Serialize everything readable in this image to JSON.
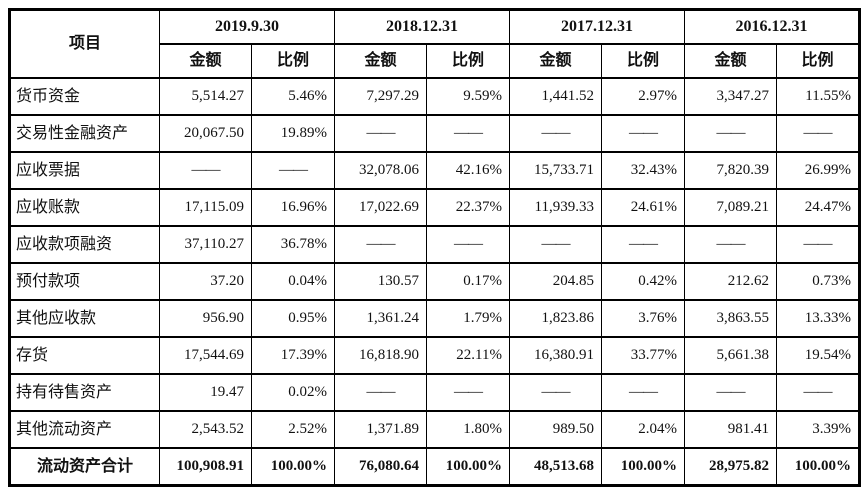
{
  "table": {
    "item_header": "项目",
    "periods": [
      "2019.9.30",
      "2018.12.31",
      "2017.12.31",
      "2016.12.31"
    ],
    "amount_label": "金额",
    "ratio_label": "比例",
    "dash": "——",
    "rows": [
      {
        "label": "货币资金",
        "cells": [
          "5,514.27",
          "5.46%",
          "7,297.29",
          "9.59%",
          "1,441.52",
          "2.97%",
          "3,347.27",
          "11.55%"
        ]
      },
      {
        "label": "交易性金融资产",
        "cells": [
          "20,067.50",
          "19.89%",
          "——",
          "——",
          "——",
          "——",
          "——",
          "——"
        ]
      },
      {
        "label": "应收票据",
        "cells": [
          "——",
          "——",
          "32,078.06",
          "42.16%",
          "15,733.71",
          "32.43%",
          "7,820.39",
          "26.99%"
        ]
      },
      {
        "label": "应收账款",
        "cells": [
          "17,115.09",
          "16.96%",
          "17,022.69",
          "22.37%",
          "11,939.33",
          "24.61%",
          "7,089.21",
          "24.47%"
        ]
      },
      {
        "label": "应收款项融资",
        "cells": [
          "37,110.27",
          "36.78%",
          "——",
          "——",
          "——",
          "——",
          "——",
          "——"
        ]
      },
      {
        "label": "预付款项",
        "cells": [
          "37.20",
          "0.04%",
          "130.57",
          "0.17%",
          "204.85",
          "0.42%",
          "212.62",
          "0.73%"
        ]
      },
      {
        "label": "其他应收款",
        "cells": [
          "956.90",
          "0.95%",
          "1,361.24",
          "1.79%",
          "1,823.86",
          "3.76%",
          "3,863.55",
          "13.33%"
        ]
      },
      {
        "label": "存货",
        "cells": [
          "17,544.69",
          "17.39%",
          "16,818.90",
          "22.11%",
          "16,380.91",
          "33.77%",
          "5,661.38",
          "19.54%"
        ]
      },
      {
        "label": "持有待售资产",
        "cells": [
          "19.47",
          "0.02%",
          "——",
          "——",
          "——",
          "——",
          "——",
          "——"
        ]
      },
      {
        "label": "其他流动资产",
        "cells": [
          "2,543.52",
          "2.52%",
          "1,371.89",
          "1.80%",
          "989.50",
          "2.04%",
          "981.41",
          "3.39%"
        ]
      },
      {
        "label": "流动资产合计",
        "total": true,
        "cells": [
          "100,908.91",
          "100.00%",
          "76,080.64",
          "100.00%",
          "48,513.68",
          "100.00%",
          "28,975.82",
          "100.00%"
        ]
      }
    ]
  }
}
